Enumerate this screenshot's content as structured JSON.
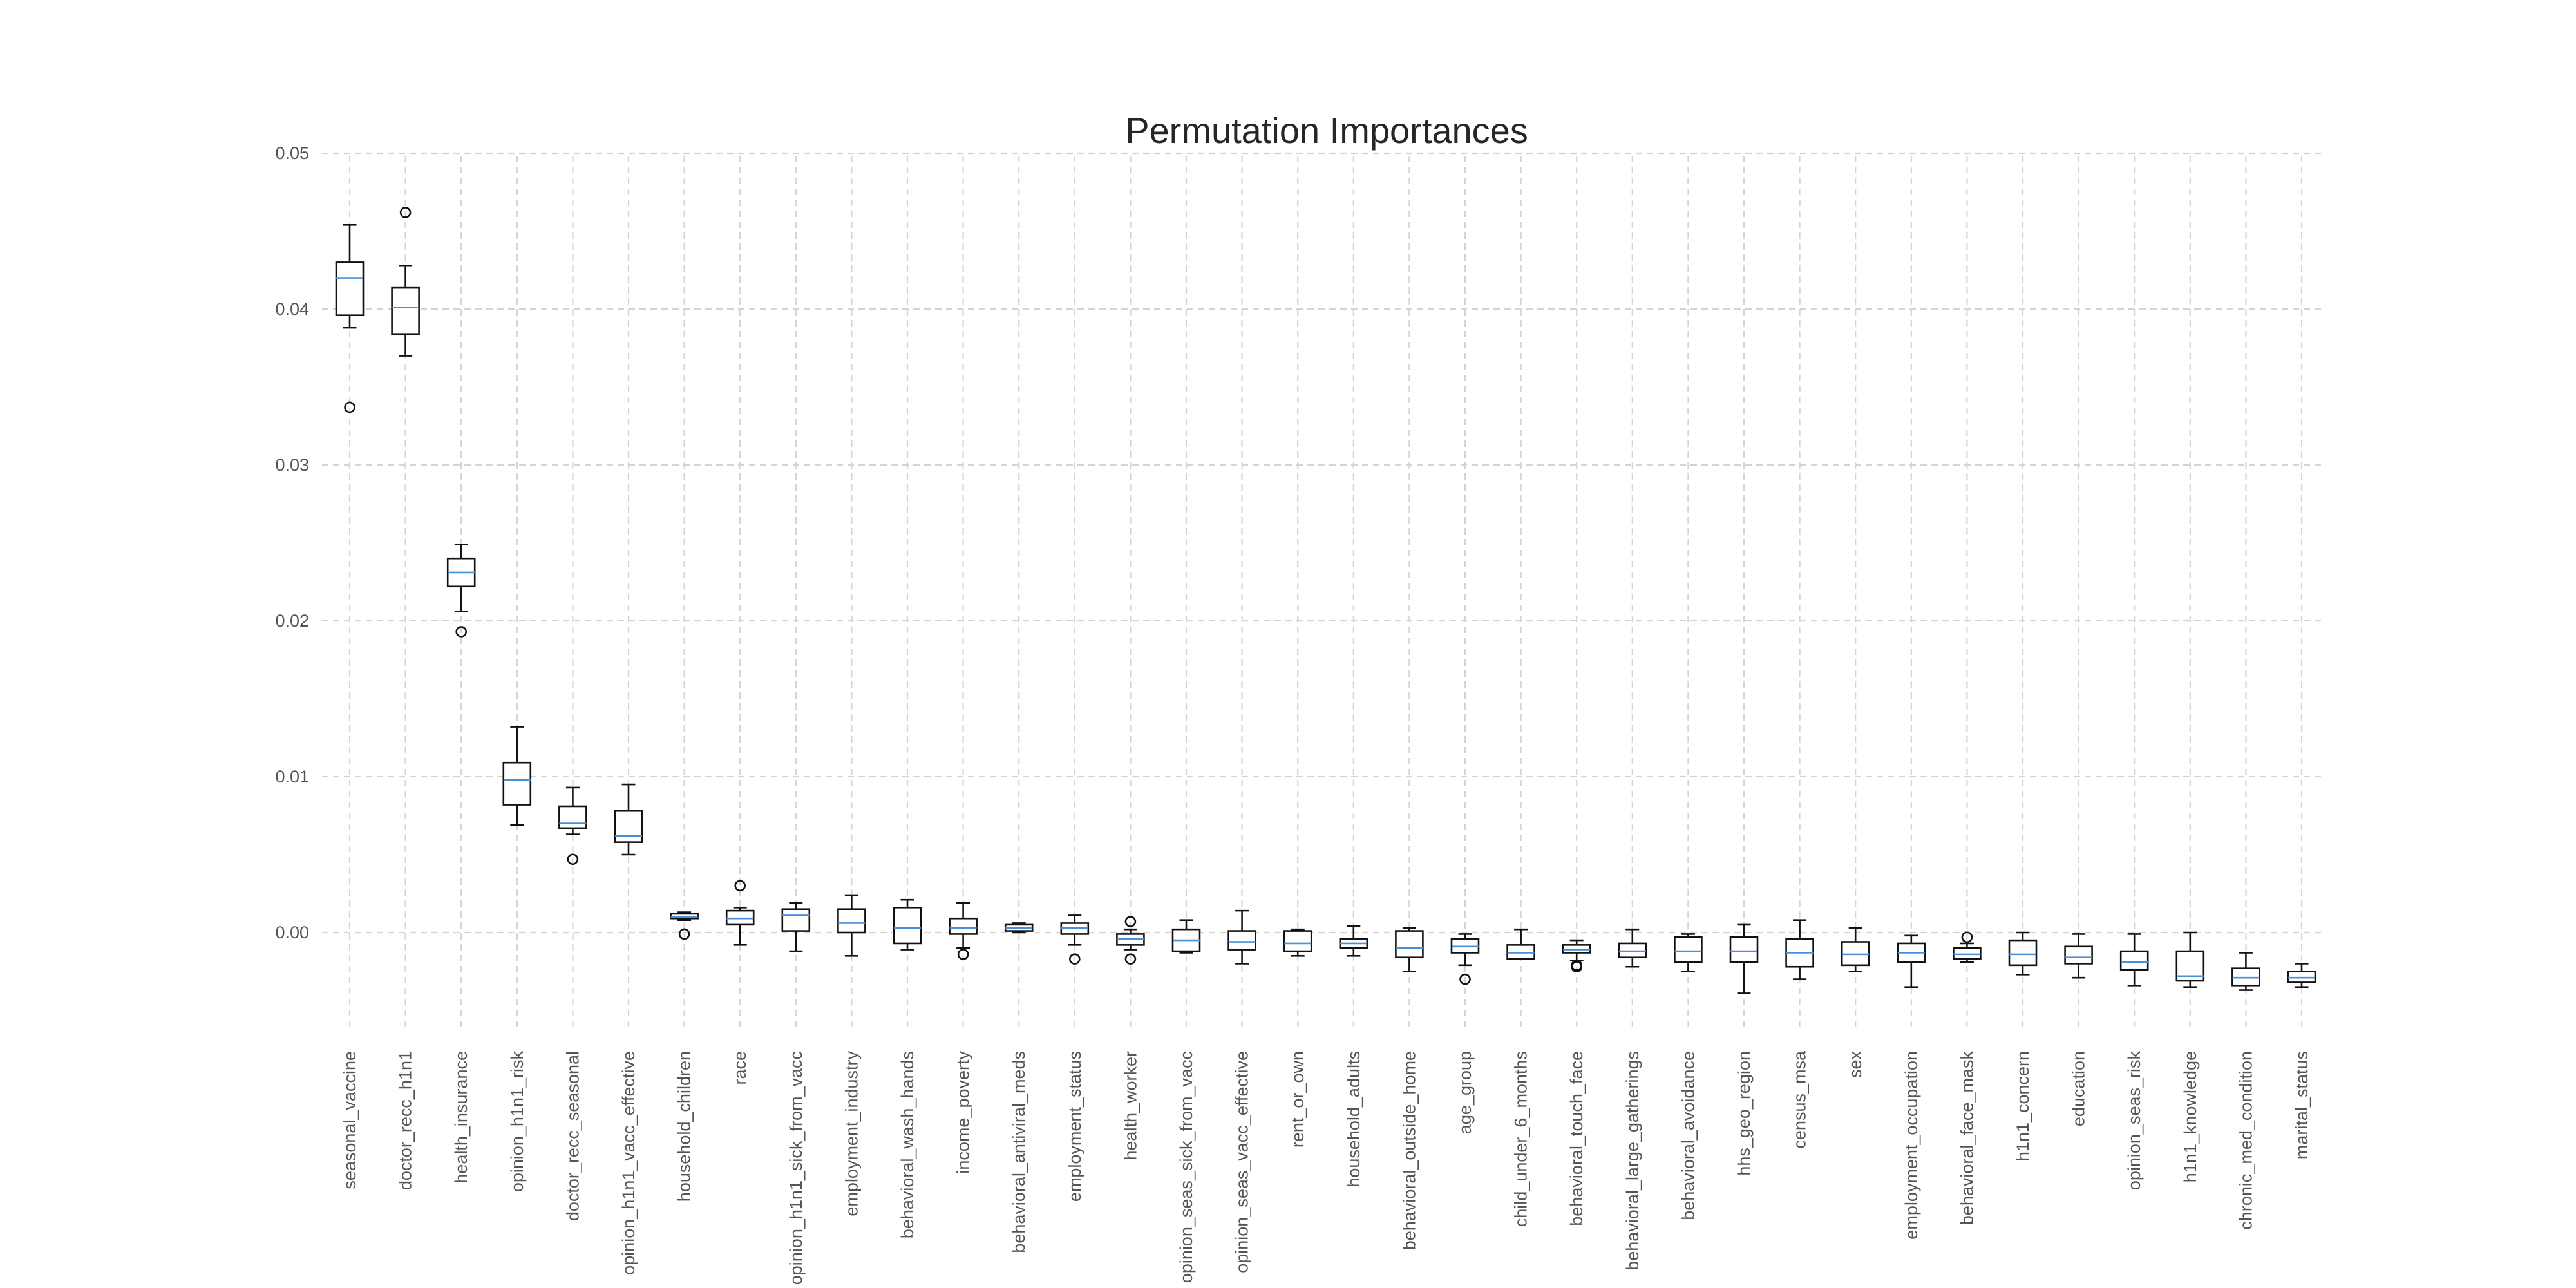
{
  "chart_data": {
    "type": "boxplot",
    "title": "Permutation Importances",
    "xlabel": "",
    "ylabel": "",
    "ylim": [
      -0.0065,
      0.05
    ],
    "yticks": [
      0.0,
      0.01,
      0.02,
      0.03,
      0.04,
      0.05
    ],
    "ytick_labels": [
      "0.00",
      "0.01",
      "0.02",
      "0.03",
      "0.04",
      "0.05"
    ],
    "grid": true,
    "colors": {
      "median": "#4a90d9",
      "box": "#111111",
      "grid": "#d4d4d4",
      "text": "#555555"
    },
    "categories": [
      "seasonal_vaccine",
      "doctor_recc_h1n1",
      "health_insurance",
      "opinion_h1n1_risk",
      "doctor_recc_seasonal",
      "opinion_h1n1_vacc_effective",
      "household_children",
      "race",
      "opinion_h1n1_sick_from_vacc",
      "employment_industry",
      "behavioral_wash_hands",
      "income_poverty",
      "behavioral_antiviral_meds",
      "employment_status",
      "health_worker",
      "opinion_seas_sick_from_vacc",
      "opinion_seas_vacc_effective",
      "rent_or_own",
      "household_adults",
      "behavioral_outside_home",
      "age_group",
      "child_under_6_months",
      "behavioral_touch_face",
      "behavioral_large_gatherings",
      "behavioral_avoidance",
      "hhs_geo_region",
      "census_msa",
      "sex",
      "employment_occupation",
      "behavioral_face_mask",
      "h1n1_concern",
      "education",
      "opinion_seas_risk",
      "h1n1_knowledge",
      "chronic_med_condition",
      "marital_status"
    ],
    "boxes": [
      {
        "whislo": 0.0388,
        "q1": 0.0396,
        "med": 0.042,
        "q3": 0.043,
        "whishi": 0.0454,
        "fliers": [
          0.0337
        ]
      },
      {
        "whislo": 0.037,
        "q1": 0.0384,
        "med": 0.0401,
        "q3": 0.0414,
        "whishi": 0.0428,
        "fliers": [
          0.0462
        ]
      },
      {
        "whislo": 0.0206,
        "q1": 0.0222,
        "med": 0.0231,
        "q3": 0.024,
        "whishi": 0.0249,
        "fliers": [
          0.0193
        ]
      },
      {
        "whislo": 0.0069,
        "q1": 0.0082,
        "med": 0.0098,
        "q3": 0.0109,
        "whishi": 0.0132,
        "fliers": []
      },
      {
        "whislo": 0.0063,
        "q1": 0.0067,
        "med": 0.007,
        "q3": 0.0081,
        "whishi": 0.0093,
        "fliers": [
          0.0047
        ]
      },
      {
        "whislo": 0.005,
        "q1": 0.0058,
        "med": 0.0062,
        "q3": 0.0078,
        "whishi": 0.0095,
        "fliers": []
      },
      {
        "whislo": 0.0008,
        "q1": 0.0009,
        "med": 0.001,
        "q3": 0.0012,
        "whishi": 0.0013,
        "fliers": [
          -0.0001
        ]
      },
      {
        "whislo": -0.0008,
        "q1": 0.0005,
        "med": 0.0009,
        "q3": 0.0014,
        "whishi": 0.0016,
        "fliers": [
          0.003
        ]
      },
      {
        "whislo": -0.0012,
        "q1": 0.0001,
        "med": 0.0011,
        "q3": 0.0015,
        "whishi": 0.0019,
        "fliers": []
      },
      {
        "whislo": -0.0015,
        "q1": 0.0,
        "med": 0.0006,
        "q3": 0.0015,
        "whishi": 0.0024,
        "fliers": []
      },
      {
        "whislo": -0.0011,
        "q1": -0.0007,
        "med": 0.0003,
        "q3": 0.0016,
        "whishi": 0.0021,
        "fliers": []
      },
      {
        "whislo": -0.001,
        "q1": -0.0001,
        "med": 0.0003,
        "q3": 0.0009,
        "whishi": 0.0019,
        "fliers": [
          -0.0014
        ]
      },
      {
        "whislo": 0.0,
        "q1": 0.0001,
        "med": 0.0003,
        "q3": 0.0005,
        "whishi": 0.0006,
        "fliers": []
      },
      {
        "whislo": -0.0008,
        "q1": -0.0001,
        "med": 0.0003,
        "q3": 0.0006,
        "whishi": 0.0011,
        "fliers": [
          -0.0017
        ]
      },
      {
        "whislo": -0.0011,
        "q1": -0.0008,
        "med": -0.0004,
        "q3": -0.0001,
        "whishi": 0.0002,
        "fliers": [
          0.0007,
          -0.0017
        ]
      },
      {
        "whislo": -0.0013,
        "q1": -0.0012,
        "med": -0.0005,
        "q3": 0.0002,
        "whishi": 0.0008,
        "fliers": []
      },
      {
        "whislo": -0.002,
        "q1": -0.0011,
        "med": -0.0006,
        "q3": 0.0001,
        "whishi": 0.0014,
        "fliers": []
      },
      {
        "whislo": -0.0015,
        "q1": -0.0012,
        "med": -0.0007,
        "q3": 0.0001,
        "whishi": 0.0002,
        "fliers": []
      },
      {
        "whislo": -0.0015,
        "q1": -0.001,
        "med": -0.0007,
        "q3": -0.0004,
        "whishi": 0.0004,
        "fliers": []
      },
      {
        "whislo": -0.0025,
        "q1": -0.0016,
        "med": -0.001,
        "q3": 0.0001,
        "whishi": 0.0003,
        "fliers": []
      },
      {
        "whislo": -0.0021,
        "q1": -0.0013,
        "med": -0.0009,
        "q3": -0.0004,
        "whishi": -0.0001,
        "fliers": [
          -0.003
        ]
      },
      {
        "whislo": -0.0017,
        "q1": -0.0017,
        "med": -0.0013,
        "q3": -0.0008,
        "whishi": 0.0002,
        "fliers": []
      },
      {
        "whislo": -0.0018,
        "q1": -0.0013,
        "med": -0.0011,
        "q3": -0.0008,
        "whishi": -0.0005,
        "fliers": [
          -0.0021,
          -0.0022
        ]
      },
      {
        "whislo": -0.0022,
        "q1": -0.0016,
        "med": -0.0012,
        "q3": -0.0007,
        "whishi": 0.0002,
        "fliers": []
      },
      {
        "whislo": -0.0025,
        "q1": -0.0019,
        "med": -0.0012,
        "q3": -0.0003,
        "whishi": -0.0001,
        "fliers": []
      },
      {
        "whislo": -0.0039,
        "q1": -0.0019,
        "med": -0.0012,
        "q3": -0.0003,
        "whishi": 0.0005,
        "fliers": []
      },
      {
        "whislo": -0.003,
        "q1": -0.0022,
        "med": -0.0013,
        "q3": -0.0004,
        "whishi": 0.0008,
        "fliers": []
      },
      {
        "whislo": -0.0025,
        "q1": -0.0021,
        "med": -0.0014,
        "q3": -0.0006,
        "whishi": 0.0003,
        "fliers": []
      },
      {
        "whislo": -0.0035,
        "q1": -0.0019,
        "med": -0.0013,
        "q3": -0.0007,
        "whishi": -0.0002,
        "fliers": []
      },
      {
        "whislo": -0.0019,
        "q1": -0.0017,
        "med": -0.0014,
        "q3": -0.001,
        "whishi": -0.0007,
        "fliers": [
          -0.0003
        ]
      },
      {
        "whislo": -0.0027,
        "q1": -0.0021,
        "med": -0.0014,
        "q3": -0.0005,
        "whishi": 0.0,
        "fliers": []
      },
      {
        "whislo": -0.0029,
        "q1": -0.002,
        "med": -0.0016,
        "q3": -0.0009,
        "whishi": -0.0001,
        "fliers": []
      },
      {
        "whislo": -0.0034,
        "q1": -0.0024,
        "med": -0.0019,
        "q3": -0.0012,
        "whishi": -0.0001,
        "fliers": []
      },
      {
        "whislo": -0.0035,
        "q1": -0.0031,
        "med": -0.0028,
        "q3": -0.0012,
        "whishi": 0.0,
        "fliers": []
      },
      {
        "whislo": -0.0037,
        "q1": -0.0034,
        "med": -0.0029,
        "q3": -0.0023,
        "whishi": -0.0013,
        "fliers": []
      },
      {
        "whislo": -0.0035,
        "q1": -0.0032,
        "med": -0.0029,
        "q3": -0.0025,
        "whishi": -0.002,
        "fliers": []
      }
    ]
  }
}
